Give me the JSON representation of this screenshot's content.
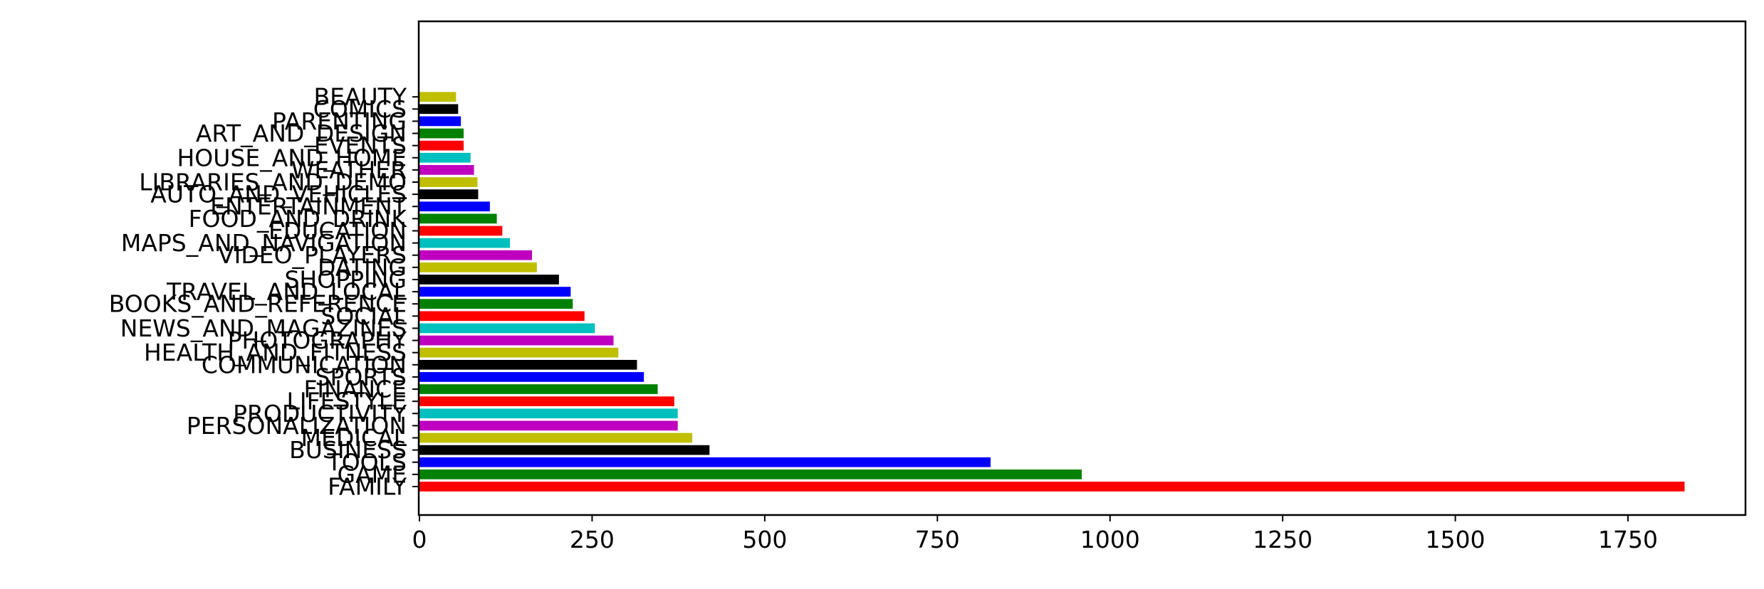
{
  "chart_data": {
    "type": "bar",
    "orientation": "horizontal",
    "title": "",
    "xlabel": "",
    "ylabel": "",
    "xlim": [
      0,
      1920
    ],
    "xticks": [
      0,
      250,
      500,
      750,
      1000,
      1250,
      1500,
      1750
    ],
    "xtick_labels": [
      "0",
      "250",
      "500",
      "750",
      "1000",
      "1250",
      "1500",
      "1750"
    ],
    "grid": false,
    "legend": "none",
    "color_cycle": [
      "#ff0000",
      "#008000",
      "#0000ff",
      "#000000",
      "#bfbf00",
      "#bf00bf",
      "#00bfbf"
    ],
    "categories": [
      "FAMILY",
      "GAME",
      "TOOLS",
      "BUSINESS",
      "MEDICAL",
      "PERSONALIZATION",
      "PRODUCTIVITY",
      "LIFESTYLE",
      "FINANCE",
      "SPORTS",
      "COMMUNICATION",
      "HEALTH_AND_FITNESS",
      "PHOTOGRAPHY",
      "NEWS_AND_MAGAZINES",
      "SOCIAL",
      "BOOKS_AND_REFERENCE",
      "TRAVEL_AND_LOCAL",
      "SHOPPING",
      "DATING",
      "VIDEO_PLAYERS",
      "MAPS_AND_NAVIGATION",
      "EDUCATION",
      "FOOD_AND_DRINK",
      "ENTERTAINMENT",
      "AUTO_AND_VEHICLES",
      "LIBRARIES_AND_DEMO",
      "WEATHER",
      "HOUSE_AND_HOME",
      "EVENTS",
      "ART_AND_DESIGN",
      "PARENTING",
      "COMICS",
      "BEAUTY"
    ],
    "values": [
      1832,
      959,
      827,
      420,
      395,
      374,
      374,
      369,
      345,
      325,
      315,
      288,
      281,
      254,
      239,
      222,
      219,
      202,
      170,
      163,
      131,
      120,
      112,
      102,
      85,
      84,
      79,
      74,
      64,
      64,
      60,
      56,
      53
    ]
  }
}
